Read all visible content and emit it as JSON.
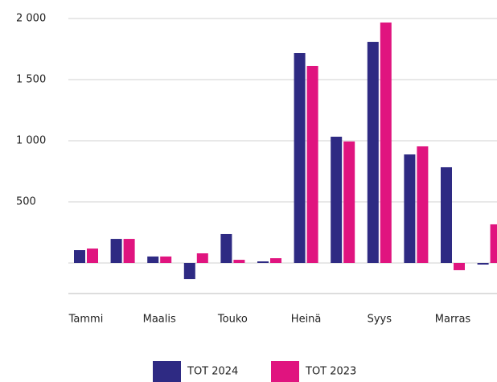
{
  "chart_data": {
    "type": "bar",
    "categories": [
      "Tammi",
      null,
      "Maalis",
      null,
      "Touko",
      null,
      "Heinä",
      null,
      "Syys",
      null,
      "Marras",
      null
    ],
    "series": [
      {
        "name": "TOT 2024",
        "color": "#2e2a83",
        "values": [
          105,
          197,
          53,
          -132,
          237,
          13,
          1717,
          1033,
          1809,
          888,
          783,
          -13
        ]
      },
      {
        "name": "TOT 2023",
        "color": "#e0147f",
        "values": [
          118,
          197,
          53,
          79,
          26,
          39,
          1612,
          994,
          1967,
          954,
          -59,
          316
        ]
      }
    ],
    "ylim": [
      -250,
      2000
    ],
    "yticks": [
      500,
      {
        "value": 1000,
        "label": "1 000"
      },
      {
        "value": 1500,
        "label": "1 500"
      },
      {
        "value": 2000,
        "label": "2 000"
      }
    ],
    "grid": true,
    "legend": "bottom"
  }
}
